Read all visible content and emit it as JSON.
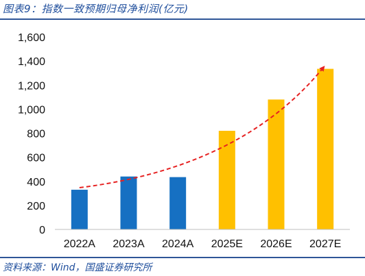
{
  "header": {
    "title": "图表9：指数一致预期归母净利润(亿元)"
  },
  "footer": {
    "source": "资料来源：Wind，国盛证券研究所"
  },
  "chart_data": {
    "type": "bar",
    "title": "指数一致预期归母净利润(亿元)",
    "categories": [
      "2022A",
      "2023A",
      "2024A",
      "2025E",
      "2026E",
      "2027E"
    ],
    "values": [
      330,
      440,
      435,
      820,
      1080,
      1335
    ],
    "bar_colors": [
      "#1670c2",
      "#1670c2",
      "#1670c2",
      "#ffc000",
      "#ffc000",
      "#ffc000"
    ],
    "ylim": [
      0,
      1600
    ],
    "y_ticks": [
      "0",
      "200",
      "400",
      "600",
      "800",
      "1,000",
      "1,200",
      "1,400",
      "1,600"
    ],
    "grid": false,
    "trend_arrow": {
      "color": "#e62222",
      "style": "dashed"
    }
  }
}
